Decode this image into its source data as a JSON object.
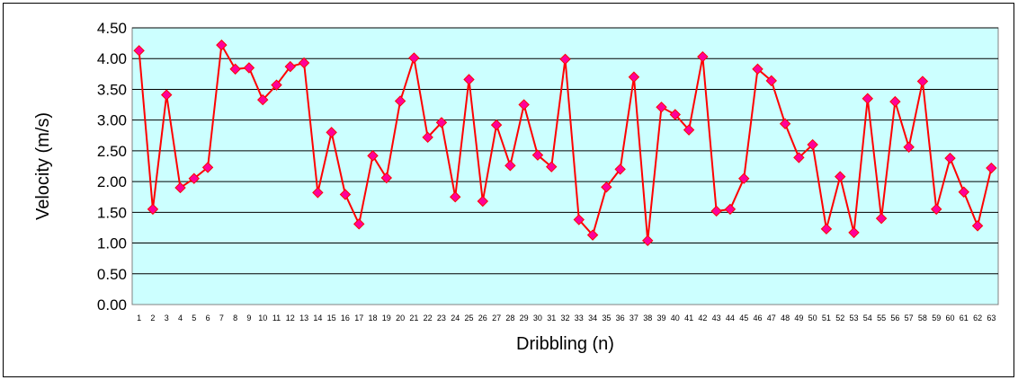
{
  "chart_data": {
    "type": "line",
    "xlabel": "Dribbling (n)",
    "ylabel": "Velocity (m/s)",
    "ylim": [
      0,
      4.5
    ],
    "ytick_step": 0.5,
    "yticks": [
      "0.00",
      "0.50",
      "1.00",
      "1.50",
      "2.00",
      "2.50",
      "3.00",
      "3.50",
      "4.00",
      "4.50"
    ],
    "grid": true,
    "colors": {
      "plot_bg": "#ccffff",
      "line": "#ff0000",
      "marker": "#ff0099",
      "grid": "#000000"
    },
    "marker": "diamond",
    "categories": [
      "1",
      "2",
      "3",
      "4",
      "5",
      "6",
      "7",
      "8",
      "9",
      "10",
      "11",
      "12",
      "13",
      "14",
      "15",
      "16",
      "17",
      "18",
      "19",
      "20",
      "21",
      "22",
      "23",
      "24",
      "25",
      "26",
      "27",
      "28",
      "29",
      "30",
      "31",
      "32",
      "33",
      "34",
      "35",
      "36",
      "37",
      "38",
      "39",
      "40",
      "41",
      "42",
      "43",
      "44",
      "45",
      "46",
      "47",
      "48",
      "49",
      "50",
      "51",
      "52",
      "53",
      "54",
      "55",
      "56",
      "57",
      "58",
      "59",
      "60",
      "61",
      "62",
      "63"
    ],
    "series": [
      {
        "values": [
          4.13,
          1.55,
          3.41,
          1.9,
          2.05,
          2.23,
          4.22,
          3.83,
          3.85,
          3.33,
          3.57,
          3.87,
          3.93,
          1.82,
          2.8,
          1.79,
          1.31,
          2.42,
          2.06,
          3.31,
          4.01,
          2.72,
          2.96,
          1.75,
          3.66,
          1.68,
          2.92,
          2.26,
          3.25,
          2.43,
          2.24,
          3.99,
          1.38,
          1.13,
          1.91,
          2.2,
          3.7,
          1.04,
          3.21,
          3.09,
          2.84,
          4.03,
          1.52,
          1.55,
          2.05,
          3.83,
          3.64,
          2.94,
          2.39,
          2.6,
          1.23,
          2.08,
          1.17,
          3.35,
          1.4,
          3.3,
          2.56,
          3.63,
          1.55,
          2.38,
          1.83,
          1.28,
          2.22
        ]
      }
    ]
  }
}
